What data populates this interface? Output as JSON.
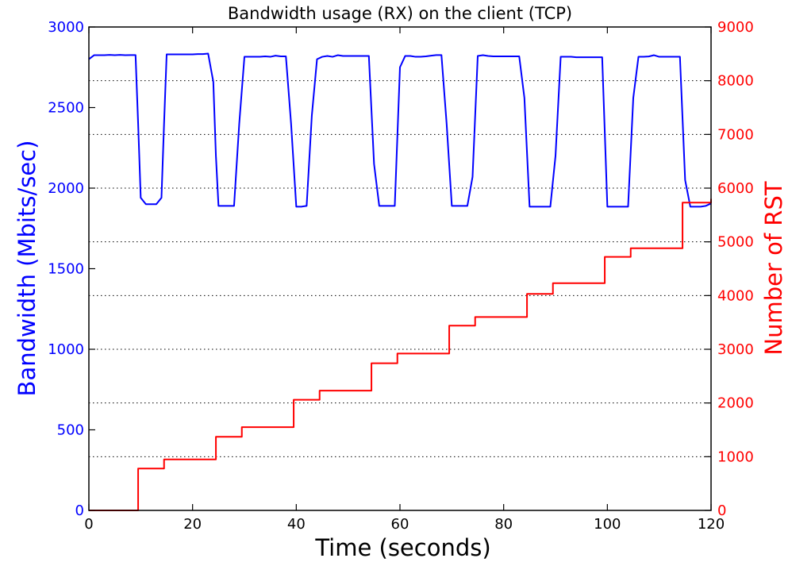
{
  "chart_data": {
    "type": "line",
    "title": "Bandwidth usage (RX) on the client (TCP)",
    "xlabel": "Time (seconds)",
    "ylabel_left": "Bandwidth (Mbits/sec)",
    "ylabel_right": "Number of RST",
    "xlim": [
      0,
      120
    ],
    "ylim_left": [
      0,
      3000
    ],
    "ylim_right": [
      0,
      9000
    ],
    "x_ticks": [
      "0",
      "20",
      "40",
      "60",
      "80",
      "100",
      "120"
    ],
    "y_left_ticks": [
      "0",
      "500",
      "1000",
      "1500",
      "2000",
      "2500",
      "3000"
    ],
    "y_right_ticks": [
      "0",
      "1000",
      "2000",
      "3000",
      "4000",
      "5000",
      "6000",
      "7000",
      "8000",
      "9000"
    ],
    "grid": "horizontal dotted",
    "colors": {
      "left": "#0000ff",
      "right": "#ff0000",
      "grid": "#000000"
    },
    "series": [
      {
        "axis": "left",
        "color": "#0000ff",
        "x": [
          0,
          1,
          2,
          3,
          4,
          5,
          6,
          7,
          8,
          9,
          9.5,
          10,
          11,
          12,
          13,
          14,
          14.5,
          15,
          16,
          17,
          18,
          19,
          20,
          21,
          22,
          23,
          24,
          24.5,
          25,
          26,
          27,
          28,
          29,
          30,
          31,
          32,
          33,
          34,
          35,
          36,
          37,
          38,
          39,
          40,
          41,
          42,
          43,
          44,
          45,
          46,
          47,
          48,
          49,
          50,
          51,
          52,
          53,
          54,
          55,
          56,
          57,
          58,
          59,
          60,
          61,
          62,
          63,
          64,
          65,
          66,
          67,
          68,
          69,
          70,
          71,
          72,
          73,
          74,
          75,
          76,
          77,
          78,
          79,
          80,
          81,
          82,
          83,
          84,
          85,
          86,
          87,
          88,
          89,
          90,
          91,
          92,
          93,
          94,
          95,
          96,
          97,
          98,
          99,
          100,
          101,
          102,
          103,
          104,
          105,
          106,
          107,
          108,
          109,
          110,
          111,
          112,
          113,
          114,
          115,
          116,
          117,
          118,
          119,
          120
        ],
        "y": [
          2800,
          2825,
          2825,
          2825,
          2827,
          2825,
          2827,
          2825,
          2826,
          2826,
          2400,
          1940,
          1900,
          1900,
          1900,
          1940,
          2400,
          2830,
          2830,
          2830,
          2830,
          2830,
          2830,
          2832,
          2832,
          2835,
          2660,
          2200,
          1890,
          1890,
          1890,
          1890,
          2400,
          2815,
          2815,
          2815,
          2815,
          2818,
          2815,
          2822,
          2818,
          2818,
          2400,
          1885,
          1885,
          1890,
          2450,
          2800,
          2815,
          2820,
          2815,
          2825,
          2820,
          2820,
          2820,
          2820,
          2820,
          2820,
          2150,
          1890,
          1890,
          1890,
          1890,
          2750,
          2820,
          2820,
          2815,
          2815,
          2818,
          2822,
          2826,
          2826,
          2400,
          1890,
          1890,
          1890,
          1890,
          2070,
          2820,
          2825,
          2820,
          2818,
          2818,
          2818,
          2818,
          2818,
          2818,
          2560,
          1885,
          1885,
          1885,
          1885,
          1885,
          2200,
          2815,
          2815,
          2815,
          2812,
          2812,
          2812,
          2812,
          2812,
          2812,
          1885,
          1885,
          1885,
          1885,
          1885,
          2560,
          2815,
          2815,
          2817,
          2825,
          2815,
          2815,
          2815,
          2815,
          2815,
          2050,
          1885,
          1885,
          1885,
          1890,
          1905
        ]
      },
      {
        "axis": "right",
        "color": "#ff0000",
        "step": true,
        "x": [
          0,
          9.5,
          9.5,
          14.5,
          24.5,
          29.5,
          39.5,
          44.5,
          54.5,
          59.5,
          69.5,
          74.5,
          84.5,
          89.5,
          99.5,
          104.5,
          114.5,
          119,
          120
        ],
        "y": [
          0,
          0,
          780,
          950,
          1370,
          1550,
          2060,
          2230,
          2740,
          2920,
          3440,
          3600,
          4030,
          4230,
          4720,
          4880,
          5730,
          5730,
          5800
        ]
      }
    ]
  }
}
